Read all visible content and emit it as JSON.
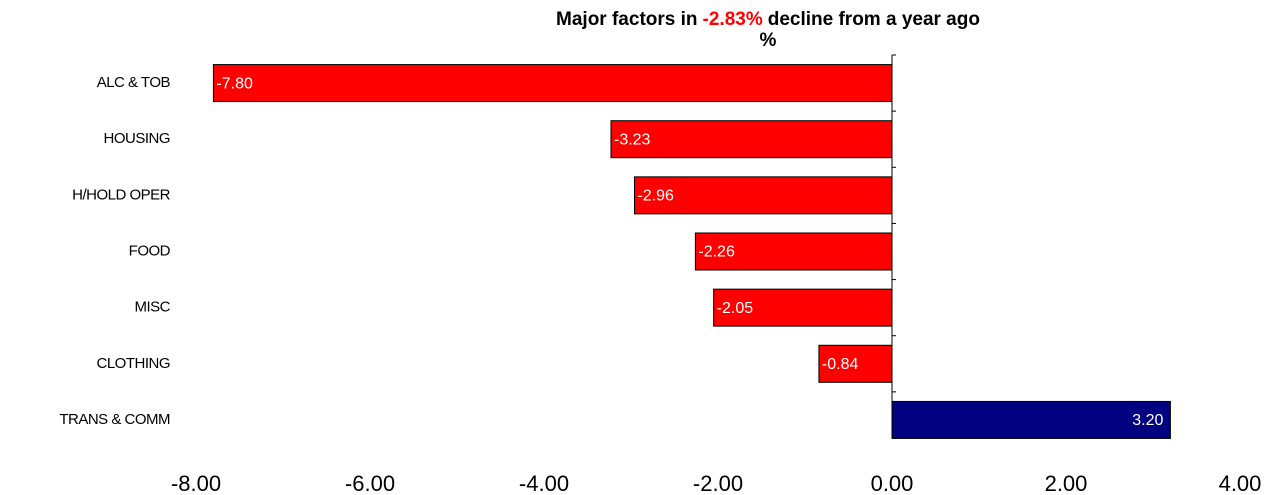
{
  "chart_data": {
    "type": "barh",
    "title_parts": [
      "Major factors in",
      "-2.83%",
      "decline from a year ago"
    ],
    "title_colors": [
      "#000000",
      "#ff0000",
      "#000000"
    ],
    "subtitle": "%",
    "categories": [
      "ALC & TOB",
      "HOUSING",
      "H/HOLD OPER",
      "FOOD",
      "MISC",
      "CLOTHING",
      "TRANS & COMM"
    ],
    "values": [
      -7.8,
      -3.23,
      -2.96,
      -2.26,
      -2.05,
      -0.84,
      3.2
    ],
    "value_labels": [
      "-7.80",
      "-3.23",
      "-2.96",
      "-2.26",
      "-2.05",
      "-0.84",
      "3.20"
    ],
    "colors": [
      "#ff0000",
      "#ff0000",
      "#ff0000",
      "#ff0000",
      "#ff0000",
      "#ff0000",
      "#000080"
    ],
    "xlim": [
      -8,
      4
    ],
    "xticks": [
      {
        "value": -8,
        "label": "-8.00"
      },
      {
        "value": -6,
        "label": "-6.00"
      },
      {
        "value": -4,
        "label": "-4.00"
      },
      {
        "value": -2,
        "label": "-2.00"
      },
      {
        "value": 0,
        "label": "0.00"
      },
      {
        "value": 2,
        "label": "2.00"
      },
      {
        "value": 4,
        "label": "4.00"
      }
    ],
    "grid": false
  }
}
